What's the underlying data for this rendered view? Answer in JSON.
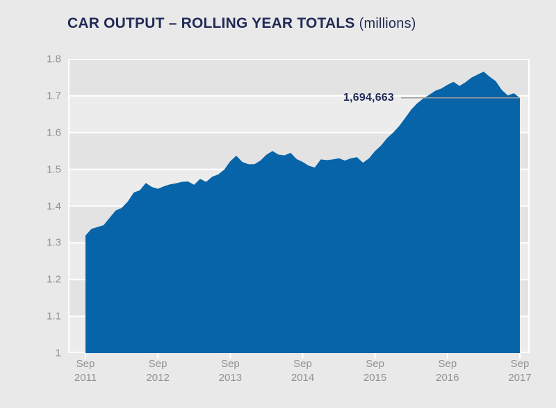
{
  "title": {
    "main": "CAR OUTPUT – ROLLING YEAR TOTALS",
    "suffix": "(millions)"
  },
  "annotation": {
    "label": "1,694,663"
  },
  "y_axis": {
    "tick_labels": [
      "1.8",
      "1.7",
      "1.6",
      "1.5",
      "1.4",
      "1.3",
      "1.2",
      "1.1",
      "1"
    ]
  },
  "x_axis": {
    "ticks": [
      {
        "month": "Sep",
        "year": "2011"
      },
      {
        "month": "Sep",
        "year": "2012"
      },
      {
        "month": "Sep",
        "year": "2013"
      },
      {
        "month": "Sep",
        "year": "2014"
      },
      {
        "month": "Sep",
        "year": "2015"
      },
      {
        "month": "Sep",
        "year": "2016"
      },
      {
        "month": "Sep",
        "year": "2017"
      }
    ]
  },
  "colors": {
    "area_fill": "#0764a8",
    "title_navy": "#222b57",
    "axis_label_gray": "#8f9193",
    "band_dark": "#e3e3e4",
    "band_light": "#ececec",
    "gridline": "#ffffff",
    "annotation_line": "#9d9d9d",
    "page_background": "#e9e9e9"
  },
  "chart_data": {
    "type": "area",
    "title": "CAR OUTPUT – ROLLING YEAR TOTALS (millions)",
    "series_name": "Rolling year total car output (millions)",
    "interval": "monthly",
    "x_start": "Sep 2011",
    "x_end": "Sep 2017",
    "x_tick_labels": [
      "Sep 2011",
      "Sep 2012",
      "Sep 2013",
      "Sep 2014",
      "Sep 2015",
      "Sep 2016",
      "Sep 2017"
    ],
    "ylim": [
      1.0,
      1.8
    ],
    "y_ticks": [
      1.0,
      1.1,
      1.2,
      1.3,
      1.4,
      1.5,
      1.6,
      1.7,
      1.8
    ],
    "grid": "horizontal-white-lines-with-alternating-bands",
    "legend": "none",
    "final_value_label": "1,694,663",
    "final_value": 1.694663,
    "values": [
      1.32,
      1.338,
      1.343,
      1.348,
      1.368,
      1.388,
      1.395,
      1.412,
      1.437,
      1.443,
      1.463,
      1.452,
      1.447,
      1.454,
      1.459,
      1.462,
      1.466,
      1.467,
      1.458,
      1.474,
      1.466,
      1.48,
      1.486,
      1.499,
      1.522,
      1.537,
      1.52,
      1.514,
      1.514,
      1.524,
      1.54,
      1.55,
      1.54,
      1.538,
      1.545,
      1.528,
      1.52,
      1.51,
      1.505,
      1.527,
      1.525,
      1.527,
      1.53,
      1.524,
      1.53,
      1.533,
      1.518,
      1.53,
      1.55,
      1.565,
      1.585,
      1.6,
      1.618,
      1.64,
      1.663,
      1.68,
      1.693,
      1.703,
      1.714,
      1.72,
      1.73,
      1.738,
      1.727,
      1.737,
      1.75,
      1.758,
      1.766,
      1.752,
      1.74,
      1.716,
      1.701,
      1.707,
      1.694663
    ]
  }
}
